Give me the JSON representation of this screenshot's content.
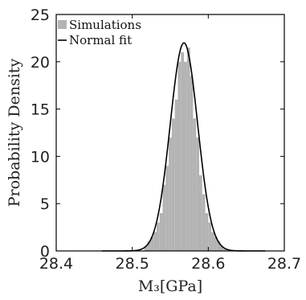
{
  "chart_data": {
    "type": "bar",
    "xlabel": "M₃[GPa]",
    "ylabel": "Probability Density",
    "xlim": [
      28.4,
      28.7
    ],
    "ylim": [
      0,
      25
    ],
    "xticks": [
      "28.4",
      "28.5",
      "28.6",
      "28.7"
    ],
    "xtick_values": [
      28.4,
      28.5,
      28.6,
      28.7
    ],
    "yticks": [
      "0",
      "5",
      "10",
      "15",
      "20",
      "25"
    ],
    "ytick_values": [
      0,
      5,
      10,
      15,
      20,
      25
    ],
    "grid": false,
    "legend_position": "top-left",
    "series": [
      {
        "name": "Simulations",
        "kind": "histogram",
        "color": "#b3b3b3",
        "bins": [
          [
            28.516,
            0.5
          ],
          [
            28.52,
            1.0
          ],
          [
            28.524,
            1.5
          ],
          [
            28.528,
            2.0
          ],
          [
            28.532,
            3.0
          ],
          [
            28.536,
            4.0
          ],
          [
            28.54,
            7.0
          ],
          [
            28.544,
            9.0
          ],
          [
            28.548,
            12.0
          ],
          [
            28.552,
            14.0
          ],
          [
            28.556,
            16.0
          ],
          [
            28.56,
            20.0
          ],
          [
            28.564,
            21.0
          ],
          [
            28.568,
            20.0
          ],
          [
            28.572,
            21.5
          ],
          [
            28.576,
            18.5
          ],
          [
            28.58,
            14.0
          ],
          [
            28.584,
            12.0
          ],
          [
            28.588,
            8.0
          ],
          [
            28.592,
            6.0
          ],
          [
            28.596,
            4.0
          ],
          [
            28.6,
            3.0
          ],
          [
            28.604,
            2.0
          ],
          [
            28.608,
            1.5
          ],
          [
            28.612,
            1.0
          ],
          [
            28.616,
            0.5
          ],
          [
            28.62,
            0.2
          ]
        ],
        "bin_width": 0.004
      },
      {
        "name": "Normal fit",
        "kind": "normal",
        "color": "#000000",
        "mean": 28.568,
        "peak": 22.0,
        "x_range": [
          28.46,
          28.675
        ]
      }
    ]
  }
}
